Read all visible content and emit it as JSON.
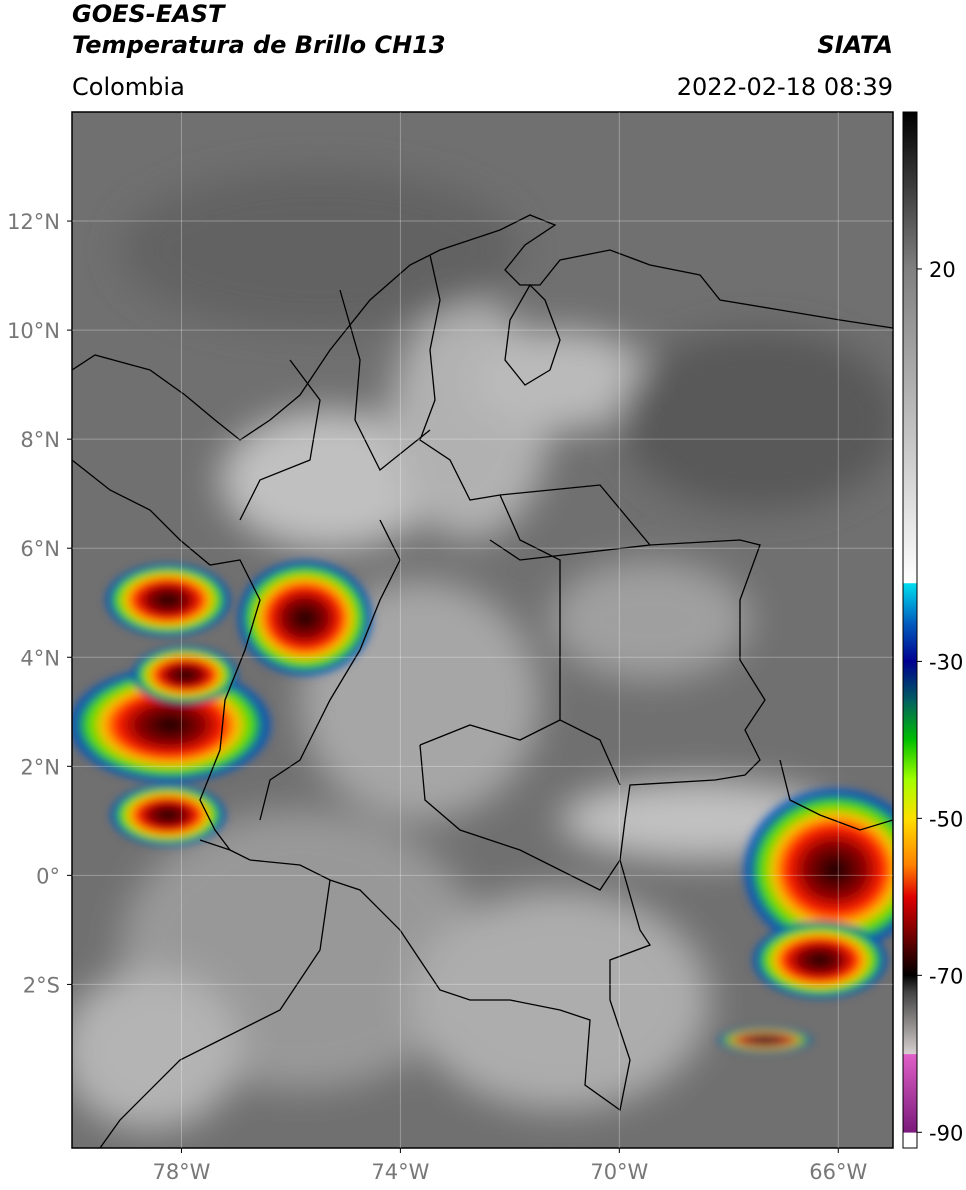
{
  "header": {
    "title": "GOES-EAST",
    "subtitle": "Temperatura de Brillo CH13",
    "source": "SIATA",
    "region": "Colombia",
    "datetime": "2022-02-18 08:39"
  },
  "map": {
    "xlim": [
      -80,
      -65
    ],
    "ylim": [
      -5,
      14
    ],
    "grid": true,
    "xticks": [
      {
        "value": -78,
        "label": "78°W"
      },
      {
        "value": -74,
        "label": "74°W"
      },
      {
        "value": -70,
        "label": "70°W"
      },
      {
        "value": -66,
        "label": "66°W"
      }
    ],
    "yticks": [
      {
        "value": -2,
        "label": "2°S"
      },
      {
        "value": 0,
        "label": "0°"
      },
      {
        "value": 2,
        "label": "2°N"
      },
      {
        "value": 4,
        "label": "4°N"
      },
      {
        "value": 6,
        "label": "6°N"
      },
      {
        "value": 8,
        "label": "8°N"
      },
      {
        "value": 10,
        "label": "10°N"
      },
      {
        "value": 12,
        "label": "12°N"
      }
    ]
  },
  "colorbar": {
    "clim": [
      -92,
      40
    ],
    "ticks": [
      20,
      -30,
      -50,
      -70,
      -90
    ],
    "stops": [
      {
        "value": -92,
        "color": "#ffffff"
      },
      {
        "value": -90,
        "color": "#ffffff"
      },
      {
        "value": -90,
        "color": "#7a1a7a"
      },
      {
        "value": -80,
        "color": "#e060c8"
      },
      {
        "value": -80,
        "color": "#d8d0d0"
      },
      {
        "value": -72,
        "color": "#404040"
      },
      {
        "value": -70,
        "color": "#000000"
      },
      {
        "value": -66,
        "color": "#5a0000"
      },
      {
        "value": -60,
        "color": "#e00000"
      },
      {
        "value": -56,
        "color": "#ff8000"
      },
      {
        "value": -50,
        "color": "#ffe000"
      },
      {
        "value": -45,
        "color": "#a0ff00"
      },
      {
        "value": -40,
        "color": "#00c000"
      },
      {
        "value": -35,
        "color": "#006060"
      },
      {
        "value": -30,
        "color": "#000090"
      },
      {
        "value": -25,
        "color": "#0060c0"
      },
      {
        "value": -20,
        "color": "#00e0f0"
      },
      {
        "value": -20,
        "color": "#ffffff"
      },
      {
        "value": 20,
        "color": "#808080"
      },
      {
        "value": 35,
        "color": "#202020"
      },
      {
        "value": 40,
        "color": "#000000"
      }
    ]
  }
}
